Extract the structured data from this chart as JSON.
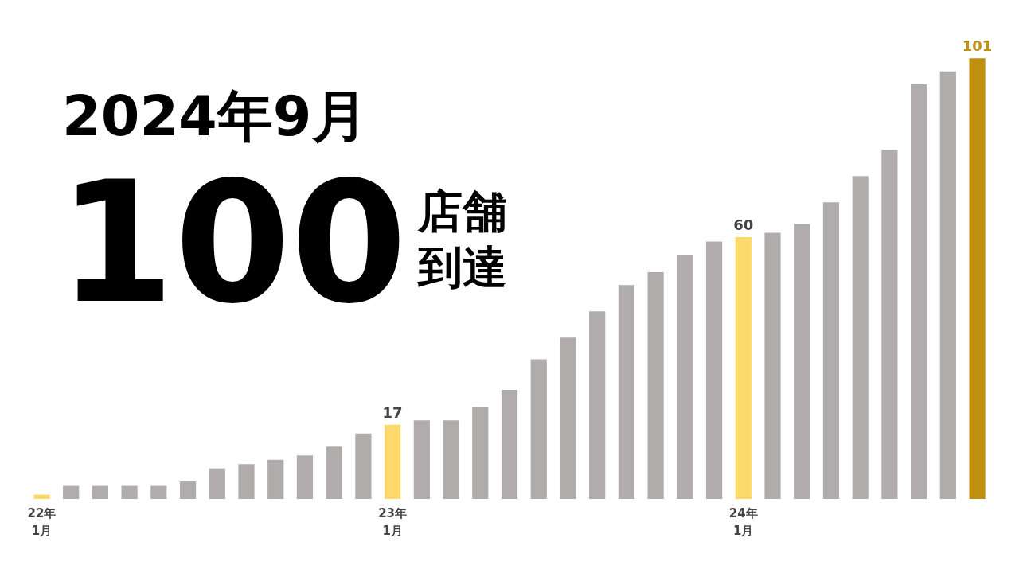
{
  "chart_data": {
    "type": "bar",
    "title": "2024年9月",
    "annotations": [
      "100",
      "店舗",
      "到達"
    ],
    "categories": [
      "22年\n1月",
      null,
      null,
      null,
      null,
      null,
      null,
      null,
      null,
      null,
      null,
      null,
      "23年\n1月",
      null,
      null,
      null,
      null,
      null,
      null,
      null,
      null,
      null,
      null,
      null,
      "24年\n1月",
      null,
      null,
      null,
      null,
      null,
      null,
      null,
      null
    ],
    "values": [
      1,
      3,
      3,
      3,
      3,
      4,
      7,
      8,
      9,
      10,
      12,
      15,
      17,
      18,
      18,
      21,
      25,
      32,
      37,
      43,
      49,
      52,
      56,
      59,
      60,
      61,
      63,
      68,
      74,
      80,
      95,
      98,
      101
    ],
    "colors": [
      "#fcd96a",
      "#b0acac",
      "#b0acac",
      "#b0acac",
      "#b0acac",
      "#b0acac",
      "#b0acac",
      "#b0acac",
      "#b0acac",
      "#b0acac",
      "#b0acac",
      "#b0acac",
      "#fcd96a",
      "#b0acac",
      "#b0acac",
      "#b0acac",
      "#b0acac",
      "#b0acac",
      "#b0acac",
      "#b0acac",
      "#b0acac",
      "#b0acac",
      "#b0acac",
      "#b0acac",
      "#fcd96a",
      "#b0acac",
      "#b0acac",
      "#b0acac",
      "#b0acac",
      "#b0acac",
      "#b0acac",
      "#b0acac",
      "#c09010"
    ],
    "value_labels": [
      null,
      null,
      null,
      null,
      null,
      null,
      null,
      null,
      null,
      null,
      null,
      null,
      "17",
      null,
      null,
      null,
      null,
      null,
      null,
      null,
      null,
      null,
      null,
      null,
      "60",
      null,
      null,
      null,
      null,
      null,
      null,
      null,
      "101"
    ],
    "grid": false
  }
}
